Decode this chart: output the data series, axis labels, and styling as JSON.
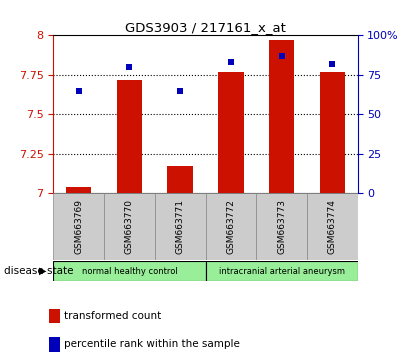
{
  "title": "GDS3903 / 217161_x_at",
  "samples": [
    "GSM663769",
    "GSM663770",
    "GSM663771",
    "GSM663772",
    "GSM663773",
    "GSM663774"
  ],
  "bar_values": [
    7.04,
    7.72,
    7.17,
    7.77,
    7.97,
    7.77
  ],
  "dot_values": [
    65,
    80,
    65,
    83,
    87,
    82
  ],
  "ylim_left": [
    7.0,
    8.0
  ],
  "ylim_right": [
    0,
    100
  ],
  "yticks_left": [
    7.0,
    7.25,
    7.5,
    7.75,
    8.0
  ],
  "ytick_labels_left": [
    "7",
    "7.25",
    "7.5",
    "7.75",
    "8"
  ],
  "yticks_right": [
    0,
    25,
    50,
    75,
    100
  ],
  "ytick_labels_right": [
    "0",
    "25",
    "50",
    "75",
    "100%"
  ],
  "bar_color": "#cc1100",
  "dot_color": "#0000bb",
  "group_info": [
    {
      "label": "normal healthy control",
      "start": 0,
      "end": 3,
      "color": "#99ee99"
    },
    {
      "label": "intracranial arterial aneurysm",
      "start": 3,
      "end": 6,
      "color": "#99ee99"
    }
  ],
  "legend_bar_label": "transformed count",
  "legend_dot_label": "percentile rank within the sample",
  "disease_state_label": "disease state",
  "sample_bg_color": "#cccccc",
  "plot_bg": "#ffffff",
  "bar_width": 0.5
}
